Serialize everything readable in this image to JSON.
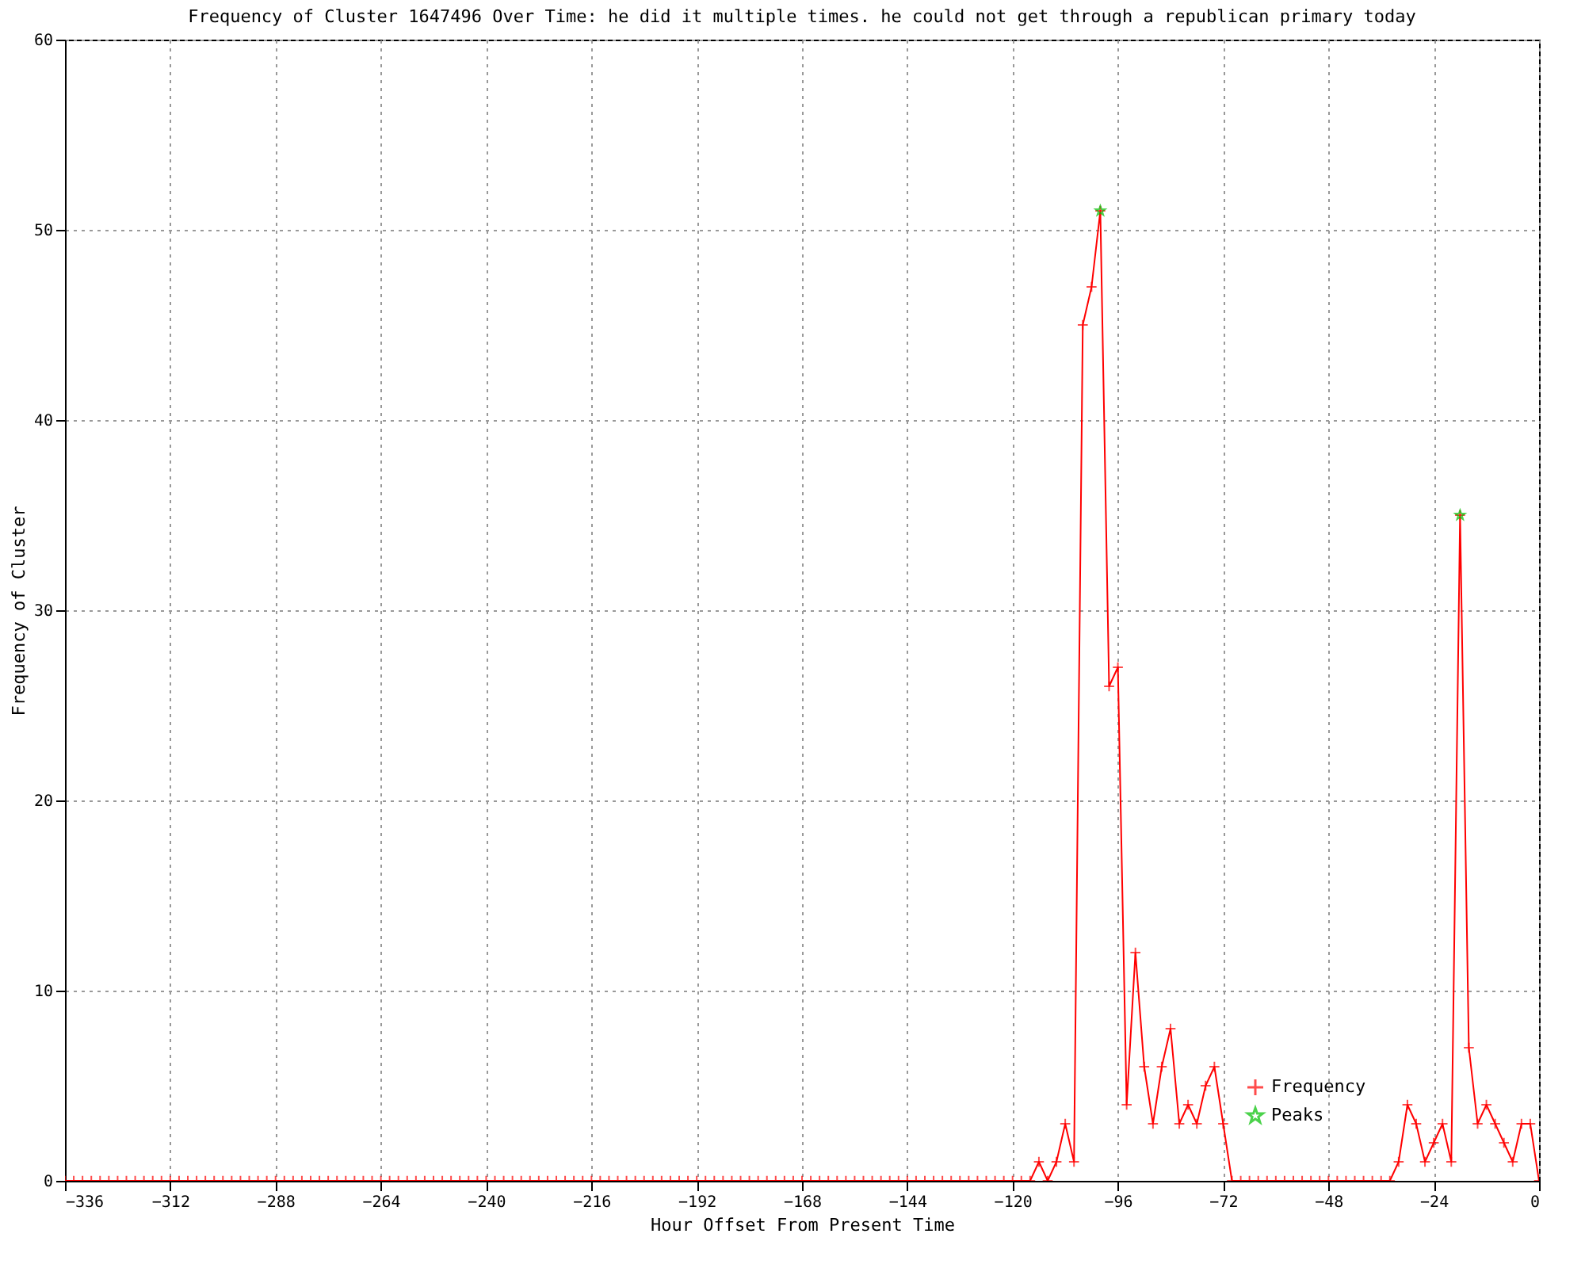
{
  "chart_data": {
    "type": "line",
    "title": "Frequency of Cluster 1647496 Over Time: he did it multiple times. he could not get through a republican primary today",
    "xlabel": "Hour Offset From Present Time",
    "ylabel": "Frequency of Cluster",
    "xlim": [
      -336,
      0
    ],
    "xticks": [
      -336,
      -312,
      -288,
      -264,
      -240,
      -216,
      -192,
      -168,
      -144,
      -120,
      -96,
      -72,
      -48,
      -24,
      0
    ],
    "ylim": [
      0,
      60
    ],
    "yticks": [
      0,
      10,
      20,
      30,
      40,
      50,
      60
    ],
    "grid": true,
    "legend": "bottom right",
    "marker": "cross",
    "series": [
      {
        "name": "Frequency",
        "type": "line",
        "color": "#ff0000",
        "x": [
          -336,
          -334,
          -332,
          -330,
          -328,
          -326,
          -324,
          -322,
          -320,
          -318,
          -316,
          -314,
          -312,
          -310,
          -308,
          -306,
          -304,
          -302,
          -300,
          -298,
          -296,
          -294,
          -292,
          -290,
          -288,
          -286,
          -284,
          -282,
          -280,
          -278,
          -276,
          -274,
          -272,
          -270,
          -268,
          -266,
          -264,
          -262,
          -260,
          -258,
          -256,
          -254,
          -252,
          -250,
          -248,
          -246,
          -244,
          -242,
          -240,
          -238,
          -236,
          -234,
          -232,
          -230,
          -228,
          -226,
          -224,
          -222,
          -220,
          -218,
          -216,
          -214,
          -212,
          -210,
          -208,
          -206,
          -204,
          -202,
          -200,
          -198,
          -196,
          -194,
          -192,
          -190,
          -188,
          -186,
          -184,
          -182,
          -180,
          -178,
          -176,
          -174,
          -172,
          -170,
          -168,
          -166,
          -164,
          -162,
          -160,
          -158,
          -156,
          -154,
          -152,
          -150,
          -148,
          -146,
          -144,
          -142,
          -140,
          -138,
          -136,
          -134,
          -132,
          -130,
          -128,
          -126,
          -124,
          -122,
          -120,
          -118,
          -116,
          -114,
          -112,
          -110,
          -108,
          -106,
          -104,
          -102,
          -100,
          -98,
          -96,
          -94,
          -92,
          -90,
          -88,
          -86,
          -84,
          -82,
          -80,
          -78,
          -76,
          -74,
          -72,
          -70,
          -68,
          -66,
          -64,
          -62,
          -60,
          -58,
          -56,
          -54,
          -52,
          -50,
          -48,
          -46,
          -44,
          -42,
          -40,
          -38,
          -36,
          -34,
          -32,
          -30,
          -28,
          -26,
          -24,
          -22,
          -20,
          -18,
          -16,
          -14,
          -12,
          -10,
          -8,
          -6,
          -4,
          -2,
          0
        ],
        "values": [
          0,
          0,
          0,
          0,
          0,
          0,
          0,
          0,
          0,
          0,
          0,
          0,
          0,
          0,
          0,
          0,
          0,
          0,
          0,
          0,
          0,
          0,
          0,
          0,
          0,
          0,
          0,
          0,
          0,
          0,
          0,
          0,
          0,
          0,
          0,
          0,
          0,
          0,
          0,
          0,
          0,
          0,
          0,
          0,
          0,
          0,
          0,
          0,
          0,
          0,
          0,
          0,
          0,
          0,
          0,
          0,
          0,
          0,
          0,
          0,
          0,
          0,
          0,
          0,
          0,
          0,
          0,
          0,
          0,
          0,
          0,
          0,
          0,
          0,
          0,
          0,
          0,
          0,
          0,
          0,
          0,
          0,
          0,
          0,
          0,
          0,
          0,
          0,
          0,
          0,
          0,
          0,
          0,
          0,
          0,
          0,
          0,
          0,
          0,
          0,
          0,
          0,
          0,
          0,
          0,
          0,
          0,
          0,
          0,
          0,
          0,
          1,
          0,
          1,
          3,
          1,
          45,
          47,
          51,
          26,
          27,
          4,
          12,
          6,
          3,
          6,
          8,
          3,
          4,
          3,
          5,
          6,
          3,
          0,
          0,
          0,
          0,
          0,
          0,
          0,
          0,
          0,
          0,
          0,
          0,
          0,
          0,
          0,
          0,
          0,
          0,
          0,
          1,
          4,
          3,
          1,
          2,
          3,
          1,
          35,
          7,
          3,
          4,
          3,
          2,
          1,
          3,
          3,
          0
        ]
      },
      {
        "name": "Peaks",
        "type": "scatter",
        "color": "#00c000",
        "marker": "star",
        "x": [
          -100,
          -18
        ],
        "values": [
          51,
          35
        ]
      }
    ]
  }
}
